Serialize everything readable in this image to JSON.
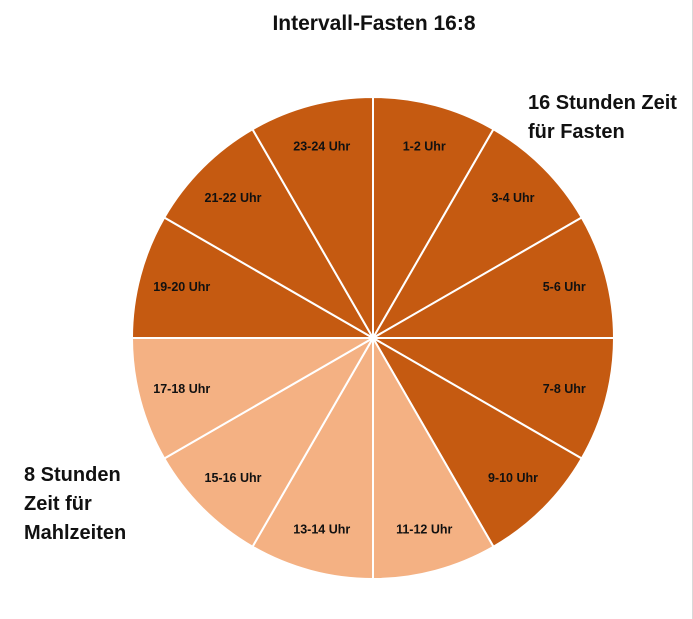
{
  "chart_data": {
    "type": "pie",
    "title": "Intervall-Fasten 16:8",
    "categories": [
      "1-2  Uhr",
      "3-4 Uhr",
      "5-6 Uhr",
      "7-8 Uhr",
      "9-10 Uhr",
      "11-12 Uhr",
      "13-14 Uhr",
      "15-16 Uhr",
      "17-18 Uhr",
      "19-20 Uhr",
      "21-22 Uhr",
      "23-24 Uhr"
    ],
    "values": [
      1,
      1,
      1,
      1,
      1,
      1,
      1,
      1,
      1,
      1,
      1,
      1
    ],
    "groups": [
      "fasten",
      "fasten",
      "fasten",
      "fasten",
      "fasten",
      "mahlzeiten",
      "mahlzeiten",
      "mahlzeiten",
      "mahlzeiten",
      "fasten",
      "fasten",
      "fasten"
    ],
    "colors": {
      "fasten": "#C55A11",
      "mahlzeiten": "#F4B183",
      "divider": "#ffffff"
    },
    "annotations": {
      "fasten": "16 Stunden Zeit\nfür Fasten",
      "mahlzeiten": "8 Stunden\nZeit für\nMahlzeiten"
    },
    "legend": "none"
  }
}
